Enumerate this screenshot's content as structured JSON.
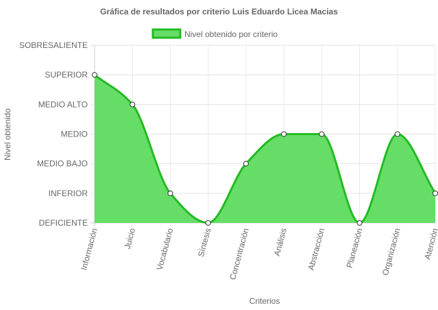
{
  "chart_data": {
    "type": "area",
    "title": "Gráfica de resultados por criterio Luis Eduardo Licea Macias",
    "xlabel": "Criterios",
    "ylabel": "Nivel obtenido",
    "categories": [
      "Información",
      "Juicio",
      "Vocabulario",
      "Síntesis",
      "Concentración",
      "Análisis",
      "Abstracción",
      "Planeación",
      "Organización",
      "Atención"
    ],
    "y_levels": [
      "DEFICIENTE",
      "INFERIOR",
      "MEDIO BAJO",
      "MEDIO",
      "MEDIO ALTO",
      "SUPERIOR",
      "SOBRESALIENTE"
    ],
    "ylim": [
      0,
      6
    ],
    "series": [
      {
        "name": "Nivel obtenido por criterio",
        "values": [
          5,
          4,
          1,
          0,
          2,
          3,
          3,
          0,
          3,
          1
        ],
        "fill_color": "#66dd66",
        "line_color": "#22bb22"
      }
    ],
    "grid": true,
    "legend": "top"
  }
}
